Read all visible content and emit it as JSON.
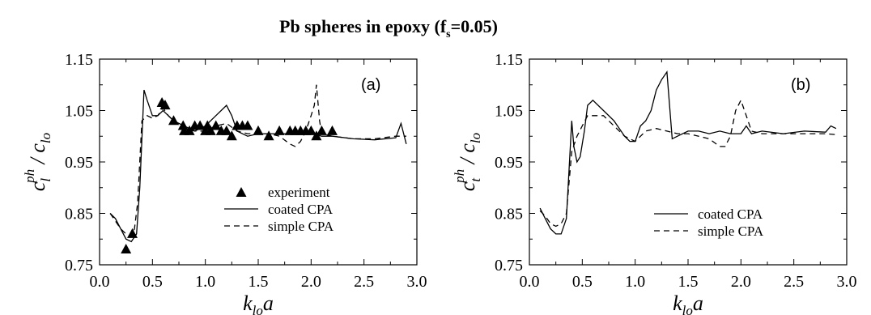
{
  "title": {
    "main": "Pb spheres in epoxy (f",
    "sub": "s",
    "tail": "=0.05)"
  },
  "chart_data": [
    {
      "type": "line",
      "panel_label": "(a)",
      "xlabel": {
        "main": "k",
        "sub": "lo",
        "tail": "a"
      },
      "ylabel": {
        "c1": "c",
        "sub1": "l",
        "sup1": "ph",
        "slash": " / ",
        "c2": "c",
        "sub2": "lo"
      },
      "xlim": [
        0,
        3
      ],
      "ylim": [
        0.75,
        1.15
      ],
      "xticks": [
        "0.0",
        "0.5",
        "1.0",
        "1.5",
        "2.0",
        "2.5",
        "3.0"
      ],
      "yticks": [
        "0.75",
        "0.85",
        "0.95",
        "1.05",
        "1.15"
      ],
      "legend": {
        "position": "lower-middle",
        "entries": [
          {
            "label": "experiment",
            "marker": "triangle"
          },
          {
            "label": "coated CPA",
            "style": "solid"
          },
          {
            "label": "simple CPA",
            "style": "dashed"
          }
        ]
      },
      "series": [
        {
          "name": "coated CPA",
          "style": "solid",
          "x": [
            0.1,
            0.15,
            0.2,
            0.25,
            0.3,
            0.35,
            0.38,
            0.42,
            0.45,
            0.5,
            0.55,
            0.6,
            0.65,
            0.7,
            0.8,
            0.9,
            1.0,
            1.1,
            1.2,
            1.25,
            1.3,
            1.4,
            1.5,
            1.6,
            1.7,
            1.8,
            1.9,
            2.0,
            2.05,
            2.1,
            2.2,
            2.4,
            2.6,
            2.8,
            2.85,
            2.9
          ],
          "y": [
            0.85,
            0.84,
            0.82,
            0.8,
            0.795,
            0.81,
            0.9,
            1.09,
            1.07,
            1.04,
            1.04,
            1.05,
            1.04,
            1.03,
            1.02,
            1.01,
            1.02,
            1.04,
            1.06,
            1.04,
            1.01,
            1.0,
            1.005,
            1.005,
            1.005,
            1.005,
            1.005,
            1.005,
            1.003,
            1.0,
            1.0,
            0.995,
            0.993,
            0.997,
            1.025,
            0.985
          ]
        },
        {
          "name": "simple CPA",
          "style": "dashed",
          "x": [
            0.1,
            0.15,
            0.2,
            0.25,
            0.3,
            0.33,
            0.36,
            0.4,
            0.45,
            0.5,
            0.55,
            0.6,
            0.65,
            0.7,
            0.8,
            0.9,
            1.0,
            1.1,
            1.2,
            1.3,
            1.4,
            1.5,
            1.6,
            1.7,
            1.8,
            1.85,
            1.9,
            1.95,
            2.0,
            2.03,
            2.05,
            2.08,
            2.1,
            2.2,
            2.4,
            2.6,
            2.8,
            2.9
          ],
          "y": [
            0.85,
            0.835,
            0.82,
            0.81,
            0.805,
            0.82,
            0.87,
            1.03,
            1.04,
            1.035,
            1.04,
            1.055,
            1.04,
            1.03,
            1.015,
            1.01,
            1.01,
            1.02,
            1.025,
            1.01,
            1.005,
            1.005,
            1.005,
            1.0,
            0.985,
            0.98,
            0.99,
            1.01,
            1.04,
            1.06,
            1.1,
            1.03,
            1.005,
            1.0,
            0.995,
            0.995,
            1.0,
            1.0
          ]
        },
        {
          "name": "experiment",
          "style": "triangle",
          "x": [
            0.25,
            0.31,
            0.59,
            0.62,
            0.7,
            0.79,
            0.8,
            0.85,
            0.9,
            0.95,
            1.0,
            1.02,
            1.05,
            1.1,
            1.15,
            1.2,
            1.25,
            1.3,
            1.35,
            1.4,
            1.5,
            1.6,
            1.7,
            1.8,
            1.85,
            1.9,
            1.95,
            2.0,
            2.05,
            2.1,
            2.2
          ],
          "y": [
            0.78,
            0.81,
            1.065,
            1.06,
            1.03,
            1.02,
            1.01,
            1.01,
            1.02,
            1.02,
            1.01,
            1.02,
            1.01,
            1.02,
            1.01,
            1.01,
            1.0,
            1.02,
            1.02,
            1.02,
            1.01,
            1.0,
            1.01,
            1.01,
            1.01,
            1.01,
            1.01,
            1.01,
            1.0,
            1.01,
            1.01
          ]
        }
      ]
    },
    {
      "type": "line",
      "panel_label": "(b)",
      "xlabel": {
        "main": "k",
        "sub": "lo",
        "tail": "a"
      },
      "ylabel": {
        "c1": "c",
        "sub1": "t",
        "sup1": "ph",
        "slash": " / ",
        "c2": "c",
        "sub2": "lo"
      },
      "xlim": [
        0,
        3
      ],
      "ylim": [
        0.75,
        1.15
      ],
      "xticks": [
        "0.0",
        "0.5",
        "1.0",
        "1.5",
        "2.0",
        "2.5",
        "3.0"
      ],
      "yticks": [
        "0.75",
        "0.85",
        "0.95",
        "1.05",
        "1.15"
      ],
      "legend": {
        "position": "lower-middle",
        "entries": [
          {
            "label": "coated CPA",
            "style": "solid"
          },
          {
            "label": "simple CPA",
            "style": "dashed"
          }
        ]
      },
      "series": [
        {
          "name": "coated CPA",
          "style": "solid",
          "x": [
            0.1,
            0.15,
            0.2,
            0.25,
            0.3,
            0.35,
            0.4,
            0.42,
            0.45,
            0.48,
            0.52,
            0.55,
            0.6,
            0.7,
            0.8,
            0.9,
            0.95,
            1.0,
            1.05,
            1.1,
            1.15,
            1.2,
            1.25,
            1.3,
            1.35,
            1.4,
            1.5,
            1.6,
            1.7,
            1.8,
            1.9,
            2.0,
            2.05,
            2.1,
            2.2,
            2.4,
            2.6,
            2.8,
            2.85,
            2.9
          ],
          "y": [
            0.86,
            0.84,
            0.82,
            0.81,
            0.81,
            0.84,
            1.03,
            0.98,
            0.95,
            0.96,
            1.01,
            1.06,
            1.07,
            1.05,
            1.03,
            1.0,
            0.99,
            0.99,
            1.02,
            1.03,
            1.05,
            1.09,
            1.11,
            1.125,
            0.995,
            1.0,
            1.01,
            1.01,
            1.005,
            1.01,
            1.005,
            1.005,
            1.02,
            1.005,
            1.01,
            1.005,
            1.01,
            1.008,
            1.02,
            1.015
          ]
        },
        {
          "name": "simple CPA",
          "style": "dashed",
          "x": [
            0.1,
            0.15,
            0.2,
            0.25,
            0.3,
            0.35,
            0.4,
            0.45,
            0.5,
            0.55,
            0.6,
            0.7,
            0.8,
            0.9,
            0.95,
            1.0,
            1.1,
            1.2,
            1.3,
            1.4,
            1.5,
            1.6,
            1.7,
            1.8,
            1.85,
            1.9,
            1.95,
            2.0,
            2.05,
            2.1,
            2.2,
            2.4,
            2.6,
            2.8,
            2.9
          ],
          "y": [
            0.855,
            0.845,
            0.83,
            0.825,
            0.83,
            0.85,
            0.97,
            1.0,
            1.02,
            1.04,
            1.04,
            1.04,
            1.02,
            1.0,
            0.995,
            0.99,
            1.01,
            1.015,
            1.01,
            1.005,
            1.005,
            1.0,
            0.995,
            0.98,
            0.98,
            1.0,
            1.05,
            1.07,
            1.04,
            1.01,
            1.005,
            1.005,
            1.005,
            1.005,
            1.003
          ]
        }
      ]
    }
  ]
}
